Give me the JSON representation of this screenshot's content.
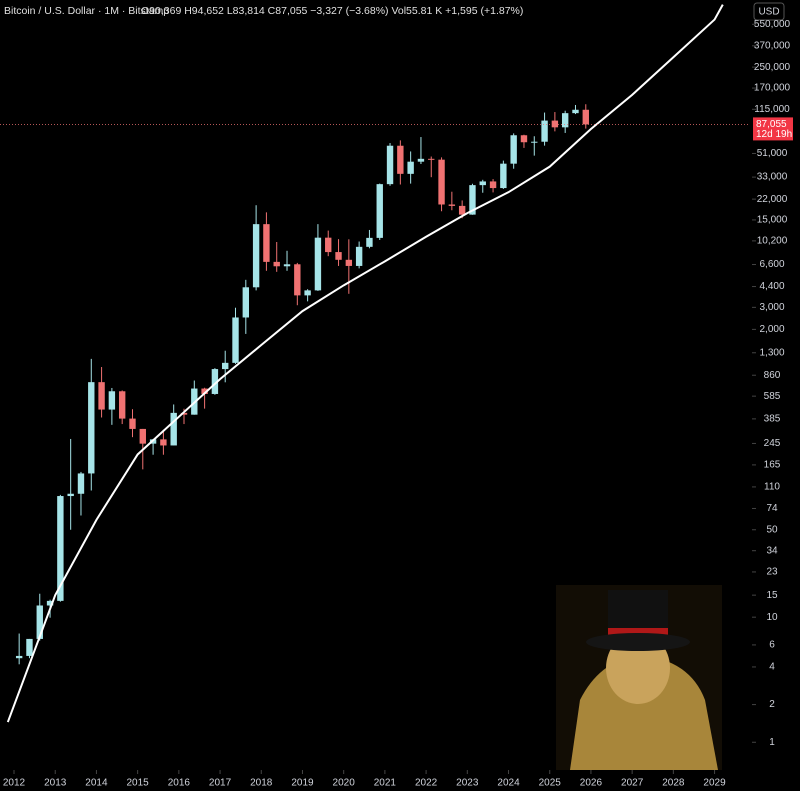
{
  "chart_data": {
    "type": "candlestick",
    "title": "Bitcoin / U.S. Dollar · 1M · Bitstamp",
    "ohlc_header": "O90,369 H94,652 L83,814 C87,055 −3,327 (−3.68%) Vol55.81 K +1,595 (+1.87%)",
    "currency": "USD",
    "log_scale": true,
    "up_color": "#a6e4e8",
    "down_color": "#f07272",
    "curve_color": "#ffffff",
    "x": [
      2012,
      2012.25,
      2012.5,
      2012.75,
      2013,
      2013.25,
      2013.5,
      2013.75,
      2014,
      2014.25,
      2014.5,
      2014.75,
      2015,
      2015.25,
      2015.5,
      2015.75,
      2016,
      2016.25,
      2016.5,
      2016.75,
      2017,
      2017.25,
      2017.5,
      2017.75,
      2018,
      2018.25,
      2018.5,
      2018.75,
      2019,
      2019.25,
      2019.5,
      2019.75,
      2020,
      2020.25,
      2020.5,
      2020.75,
      2021,
      2021.25,
      2021.5,
      2021.75,
      2022,
      2022.25,
      2022.5,
      2022.75,
      2023,
      2023.25,
      2023.5,
      2023.75,
      2024,
      2024.25,
      2024.5,
      2024.75,
      2025,
      2025.25,
      2025.5,
      2025.75
    ],
    "open": [
      4.7,
      4.9,
      6.7,
      12.4,
      13.5,
      93,
      97,
      141,
      757,
      457,
      640,
      387,
      320,
      244,
      264,
      236,
      430,
      416,
      673,
      609,
      963,
      1080,
      2490,
      4340,
      13880,
      6930,
      6390,
      6630,
      3740,
      4100,
      10820,
      8300,
      7200,
      6430,
      9140,
      10780,
      28990,
      58790,
      35040,
      43830,
      46200,
      45500,
      19930,
      19420,
      16540,
      28470,
      30470,
      26970,
      42260,
      71300,
      62700,
      63300,
      93400,
      82500,
      107100,
      114000
    ],
    "high": [
      7.4,
      6.7,
      15.4,
      13.8,
      95,
      266,
      145,
      1163,
      1000,
      680,
      650,
      460,
      320,
      266,
      315,
      502,
      464,
      780,
      683,
      980,
      1350,
      2980,
      4980,
      19666,
      17250,
      9990,
      8500,
      6800,
      4190,
      13880,
      12330,
      10530,
      10500,
      10080,
      12470,
      29300,
      61780,
      64900,
      52920,
      69000,
      48200,
      47450,
      25210,
      21480,
      29190,
      31400,
      31800,
      44700,
      73800,
      72000,
      70000,
      108300,
      109300,
      112000,
      124500,
      126200
    ],
    "low": [
      4.2,
      4.7,
      6.5,
      9.9,
      13.3,
      50,
      65,
      103,
      395,
      345,
      350,
      275,
      152,
      199,
      199,
      236,
      350,
      416,
      465,
      600,
      755,
      1060,
      1840,
      4100,
      5880,
      5770,
      5880,
      3120,
      3350,
      4060,
      7700,
      6430,
      3850,
      6150,
      8900,
      10370,
      28130,
      28800,
      29270,
      42000,
      32950,
      17600,
      17930,
      15480,
      16500,
      24750,
      24900,
      26540,
      38500,
      56500,
      49000,
      58900,
      76600,
      74400,
      105300,
      80600
    ],
    "close": [
      4.9,
      6.7,
      12.4,
      13.5,
      93,
      97,
      141,
      757,
      457,
      640,
      387,
      320,
      244,
      264,
      236,
      430,
      416,
      673,
      609,
      963,
      1080,
      2490,
      4340,
      13880,
      6930,
      6390,
      6630,
      3740,
      4100,
      10820,
      8300,
      7200,
      6430,
      9140,
      10780,
      28990,
      58790,
      35040,
      43830,
      46200,
      45500,
      19930,
      19420,
      16540,
      28470,
      30470,
      26970,
      42260,
      71300,
      62700,
      63300,
      93400,
      82500,
      107100,
      114000,
      87055
    ],
    "curve": {
      "x": [
        2011.85,
        2013,
        2014,
        2015,
        2016,
        2017,
        2018,
        2019,
        2020,
        2021,
        2022,
        2023,
        2024,
        2025,
        2026,
        2027,
        2028,
        2029,
        2029.2
      ],
      "values": [
        1.45,
        15,
        60,
        200,
        400,
        800,
        1500,
        2800,
        4500,
        7000,
        11000,
        17000,
        25000,
        40000,
        80000,
        150000,
        300000,
        600000,
        790000
      ]
    },
    "last_price": {
      "value": 87055,
      "label": "87,055",
      "countdown": "12d 19h"
    },
    "xlim": [
      2011.66,
      2029.86
    ],
    "xticks": [
      2012,
      2013,
      2014,
      2015,
      2016,
      2017,
      2018,
      2019,
      2020,
      2021,
      2022,
      2023,
      2024,
      2025,
      2026,
      2027,
      2028,
      2029
    ],
    "ylim": [
      0.6,
      860000
    ],
    "yticks": [
      1,
      2,
      4,
      6,
      10,
      15,
      23,
      34,
      50,
      74,
      110,
      165,
      245,
      385,
      585,
      860,
      {
        "value": 1300,
        "label": "1,300"
      },
      {
        "value": 2000,
        "label": "2,000"
      },
      {
        "value": 3000,
        "label": "3,000"
      },
      {
        "value": 4400,
        "label": "4,400"
      },
      {
        "value": 6600,
        "label": "6,600"
      },
      {
        "value": 10200,
        "label": "10,200"
      },
      {
        "value": 15000,
        "label": "15,000"
      },
      {
        "value": 22000,
        "label": "22,000"
      },
      {
        "value": 33000,
        "label": "33,000"
      },
      {
        "value": 51000,
        "label": "51,000"
      },
      {
        "value": 115000,
        "label": "115,000"
      },
      {
        "value": 170000,
        "label": "170,000"
      },
      {
        "value": 250000,
        "label": "250,000"
      },
      {
        "value": 370000,
        "label": "370,000"
      },
      {
        "value": 550000,
        "label": "550,000"
      }
    ]
  }
}
